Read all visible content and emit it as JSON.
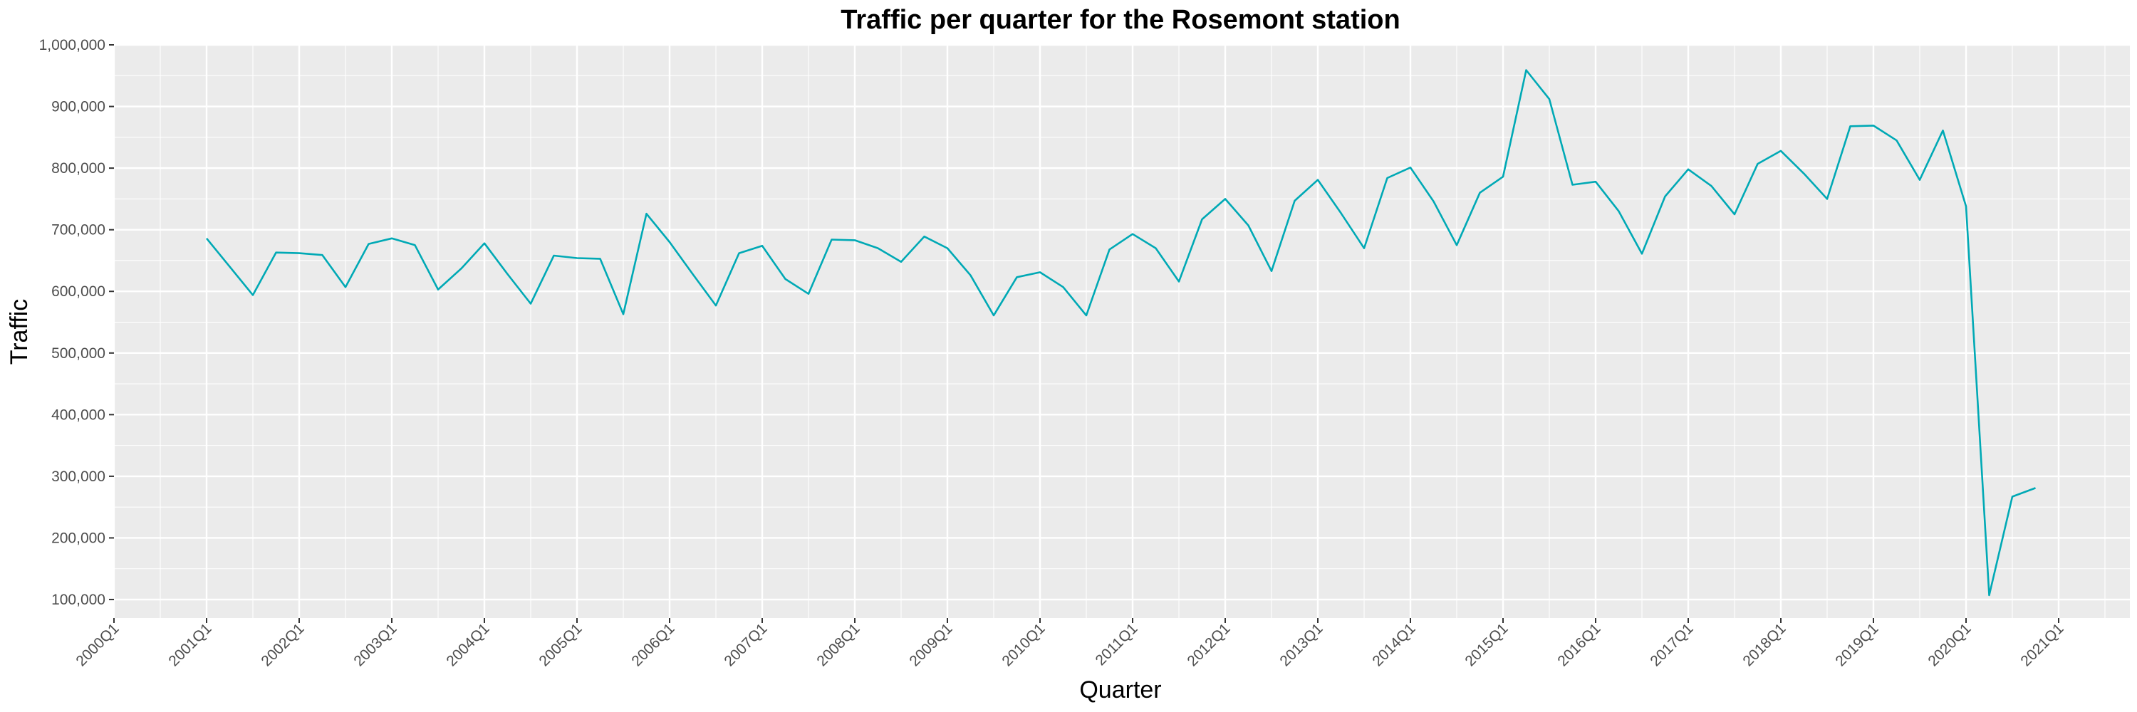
{
  "chart_data": {
    "type": "line",
    "title": "Traffic per quarter for the Rosemont station",
    "xlabel": "Quarter",
    "ylabel": "Traffic",
    "x_tick_labels": [
      "2000Q1",
      "2001Q1",
      "2002Q1",
      "2003Q1",
      "2004Q1",
      "2005Q1",
      "2006Q1",
      "2007Q1",
      "2008Q1",
      "2009Q1",
      "2010Q1",
      "2011Q1",
      "2012Q1",
      "2013Q1",
      "2014Q1",
      "2015Q1",
      "2016Q1",
      "2017Q1",
      "2018Q1",
      "2019Q1",
      "2020Q1",
      "2021Q1"
    ],
    "y_tick_labels": [
      "100,000",
      "200,000",
      "300,000",
      "400,000",
      "500,000",
      "600,000",
      "700,000",
      "800,000",
      "900,000",
      "1,000,000"
    ],
    "y_ticks": [
      100000,
      200000,
      300000,
      400000,
      500000,
      600000,
      700000,
      800000,
      900000,
      1000000
    ],
    "xlim": [
      "2000Q1",
      "2021Q1"
    ],
    "ylim": [
      70000,
      1000000
    ],
    "grid": true,
    "colors": {
      "line": "#00a9b5",
      "panel": "#ebebeb",
      "grid": "#ffffff"
    },
    "series": [
      {
        "x": [
          "2001Q1",
          "2001Q2",
          "2001Q3",
          "2001Q4",
          "2002Q1",
          "2002Q2",
          "2002Q3",
          "2002Q4",
          "2003Q1",
          "2003Q2",
          "2003Q3",
          "2003Q4",
          "2004Q1",
          "2004Q2",
          "2004Q3",
          "2004Q4",
          "2005Q1",
          "2005Q2",
          "2005Q3",
          "2005Q4",
          "2006Q1",
          "2006Q2",
          "2006Q3",
          "2006Q4",
          "2007Q1",
          "2007Q2",
          "2007Q3",
          "2007Q4",
          "2008Q1",
          "2008Q2",
          "2008Q3",
          "2008Q4",
          "2009Q1",
          "2009Q2",
          "2009Q3",
          "2009Q4",
          "2010Q1",
          "2010Q2",
          "2010Q3",
          "2010Q4",
          "2011Q1",
          "2011Q2",
          "2011Q3",
          "2011Q4",
          "2012Q1",
          "2012Q2",
          "2012Q3",
          "2012Q4",
          "2013Q1",
          "2013Q2",
          "2013Q3",
          "2013Q4",
          "2014Q1",
          "2014Q2",
          "2014Q3",
          "2014Q4",
          "2015Q1",
          "2015Q2",
          "2015Q3",
          "2015Q4",
          "2016Q1",
          "2016Q2",
          "2016Q3",
          "2016Q4",
          "2017Q1",
          "2017Q2",
          "2017Q3",
          "2017Q4",
          "2018Q1",
          "2018Q2",
          "2018Q3",
          "2018Q4",
          "2019Q1",
          "2019Q2",
          "2019Q3",
          "2019Q4",
          "2020Q1",
          "2020Q2",
          "2020Q3",
          "2020Q4"
        ],
        "y": [
          686000,
          640000,
          594000,
          663000,
          662000,
          659000,
          607000,
          677000,
          686000,
          675000,
          603000,
          637000,
          678000,
          628000,
          580000,
          658000,
          654000,
          653000,
          563000,
          726000,
          680000,
          628000,
          577000,
          662000,
          674000,
          620000,
          596000,
          684000,
          683000,
          670000,
          648000,
          689000,
          670000,
          626000,
          561000,
          623000,
          631000,
          607000,
          561000,
          668000,
          693000,
          670000,
          616000,
          717000,
          750000,
          707000,
          633000,
          747000,
          781000,
          727000,
          670000,
          784000,
          801000,
          746000,
          675000,
          760000,
          786000,
          959000,
          912000,
          773000,
          778000,
          730000,
          661000,
          754000,
          798000,
          771000,
          725000,
          807000,
          828000,
          791000,
          750000,
          868000,
          869000,
          845000,
          781000,
          861000,
          738000,
          107000,
          267000,
          281000
        ]
      }
    ]
  }
}
